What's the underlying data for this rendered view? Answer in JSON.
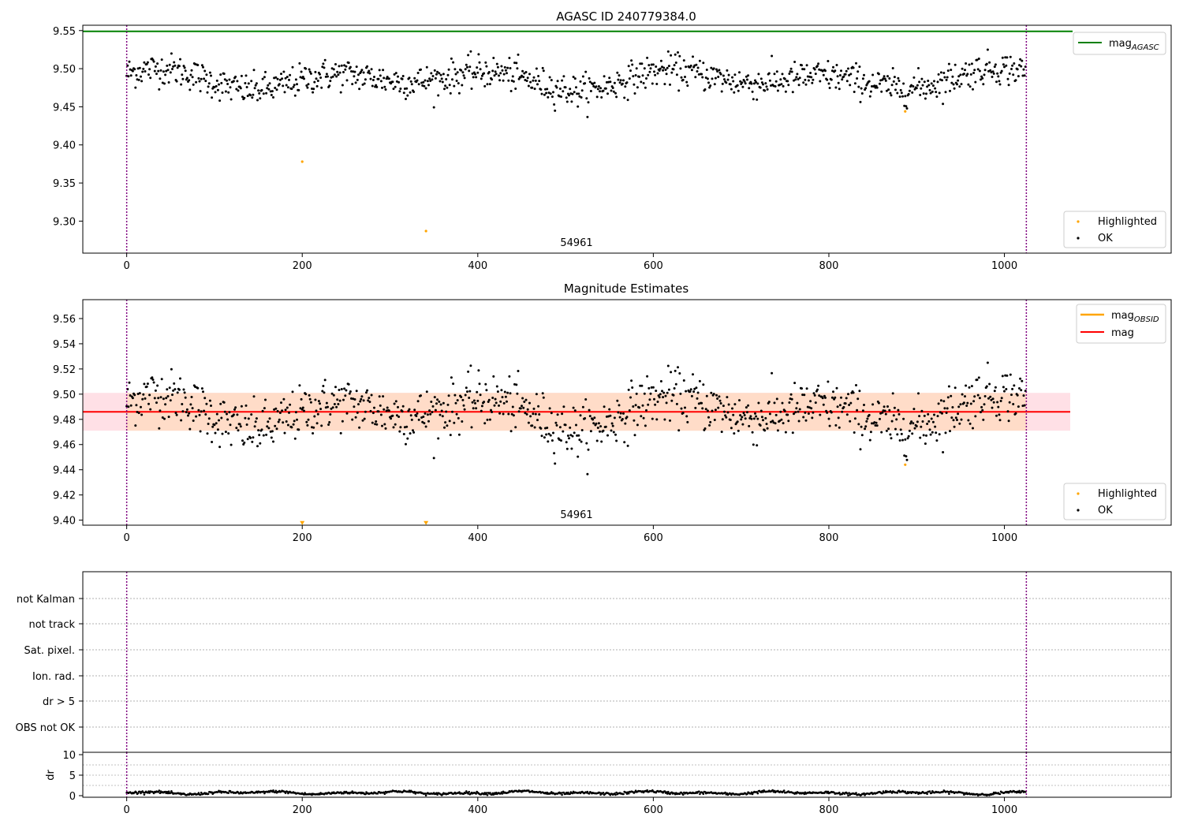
{
  "colors": {
    "ok": "#000000",
    "highlighted": "#ffa500",
    "mag_agasc": "#008000",
    "mag_obsid": "#ffa500",
    "mag": "#ff0000",
    "obs_boundary": "#800080",
    "band_inner": "#ffdcc8",
    "band_outer": "#ffe0e6"
  },
  "chart_data": [
    {
      "type": "scatter",
      "title": "AGASC ID 240779384.0",
      "xlim": [
        -50,
        1190
      ],
      "ylim": [
        9.258,
        9.557
      ],
      "xticks": [
        "0",
        "200",
        "400",
        "600",
        "800",
        "1000"
      ],
      "yticks": [
        "9.30",
        "9.35",
        "9.40",
        "9.45",
        "9.50",
        "9.55"
      ],
      "annotation": "54961",
      "mag_agasc": 9.549,
      "obs_boundaries": [
        0,
        1025
      ],
      "ok_series": {
        "n": 1025,
        "base": 9.486,
        "noise": 0.013
      },
      "highlighted_points": [
        {
          "x": 200,
          "y": 9.378
        },
        {
          "x": 341,
          "y": 9.287
        },
        {
          "x": 887,
          "y": 9.444
        }
      ],
      "legend_top": [
        {
          "label": "mag",
          "sub": "AGASC"
        }
      ],
      "legend_bottom": [
        {
          "label": "Highlighted"
        },
        {
          "label": "OK"
        }
      ]
    },
    {
      "type": "scatter",
      "title": "Magnitude Estimates",
      "xlim": [
        -50,
        1190
      ],
      "ylim": [
        9.396,
        9.575
      ],
      "xticks": [
        "0",
        "200",
        "400",
        "600",
        "800",
        "1000"
      ],
      "yticks": [
        "9.40",
        "9.42",
        "9.44",
        "9.46",
        "9.48",
        "9.50",
        "9.52",
        "9.54",
        "9.56"
      ],
      "annotation": "54961",
      "mag": 9.486,
      "mag_band": [
        9.471,
        9.501
      ],
      "band_x_range": [
        -50,
        1075
      ],
      "obs_boundaries": [
        0,
        1025
      ],
      "highlighted_points": [
        {
          "x": 200,
          "y": 9.398
        },
        {
          "x": 341,
          "y": 9.398
        },
        {
          "x": 887,
          "y": 9.444
        }
      ],
      "legend_top": [
        {
          "label": "mag",
          "sub": "OBSID"
        },
        {
          "label": "mag"
        }
      ],
      "legend_bottom": [
        {
          "label": "Highlighted"
        },
        {
          "label": "OK"
        }
      ]
    },
    {
      "type": "scatter",
      "flag_labels": [
        "not Kalman",
        "not track",
        "Sat. pixel.",
        "Ion. rad.",
        "dr > 5",
        "OBS not OK"
      ],
      "dr": {
        "ylabel": "dr",
        "ylim": [
          0,
          10
        ],
        "yticks": [
          "0",
          "5",
          "10"
        ],
        "base": 0.7,
        "amplitude": 0.4
      },
      "xticks": [
        "0",
        "200",
        "400",
        "600",
        "800",
        "1000"
      ],
      "obs_boundaries": [
        0,
        1025
      ]
    }
  ]
}
